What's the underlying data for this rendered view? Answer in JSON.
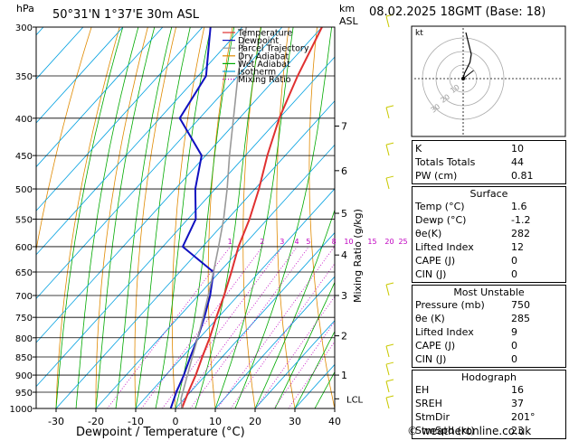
{
  "header": {
    "location": "50°31'N  1°37'E  30m  ASL",
    "date": "08.02.2025  18GMT  (Base: 18)",
    "pressure_unit": "hPa",
    "height_unit_km": "km",
    "height_unit_asl": "ASL"
  },
  "footer": "© weatheronline.co.uk",
  "chart_data": {
    "type": "line",
    "xlabel": "Dewpoint / Temperature (°C)",
    "ylabel_right": "Mixing Ratio (g/kg)",
    "x_ticks": [
      "-30",
      "-20",
      "-10",
      "0",
      "10",
      "20",
      "30",
      "40"
    ],
    "x_tick_values": [
      -30,
      -20,
      -10,
      0,
      10,
      20,
      30,
      40
    ],
    "pressure_levels": [
      300,
      350,
      400,
      450,
      500,
      550,
      600,
      650,
      700,
      750,
      800,
      850,
      900,
      950,
      1000
    ],
    "pressure_labels": [
      "300",
      "350",
      "400",
      "450",
      "500",
      "550",
      "600",
      "650",
      "700",
      "750",
      "800",
      "850",
      "900",
      "950",
      "1000"
    ],
    "km_ticks": [
      {
        "label": "1",
        "p": 900
      },
      {
        "label": "2",
        "p": 795
      },
      {
        "label": "3",
        "p": 700
      },
      {
        "label": "4",
        "p": 616
      },
      {
        "label": "5",
        "p": 540
      },
      {
        "label": "6",
        "p": 472
      },
      {
        "label": "7",
        "p": 410
      }
    ],
    "lcl": {
      "label": "LCL",
      "p": 970
    },
    "mixing_ratio_labels": [
      "1",
      "2",
      "3",
      "4",
      "5",
      "8",
      "10",
      "15",
      "20",
      "25"
    ],
    "mixing_ratio_values": [
      1,
      2,
      3,
      4,
      5,
      8,
      10,
      15,
      20,
      25
    ],
    "series": [
      {
        "name": "Temperature",
        "color": "#e03030",
        "p": [
          1000,
          950,
          900,
          850,
          800,
          750,
          700,
          650,
          600,
          550,
          500,
          450,
          400,
          350,
          300
        ],
        "t": [
          1.6,
          -0.5,
          -2.5,
          -5.0,
          -7.5,
          -10.5,
          -13.5,
          -17.0,
          -21.0,
          -24.5,
          -29.0,
          -34.5,
          -40.0,
          -45.0,
          -50.0
        ]
      },
      {
        "name": "Dewpoint",
        "color": "#1010c0",
        "p": [
          1000,
          950,
          900,
          850,
          800,
          750,
          700,
          650,
          600,
          550,
          500,
          450,
          400,
          350,
          300
        ],
        "t": [
          -1.2,
          -3.5,
          -5.5,
          -8.0,
          -10.5,
          -13.5,
          -17.0,
          -21.5,
          -35.0,
          -38.0,
          -45.0,
          -51.0,
          -65.0,
          -68.0,
          -78.0
        ]
      },
      {
        "name": "Parcel Trajectory",
        "color": "#999999",
        "p": [
          1000,
          970,
          900,
          850,
          800,
          750,
          700,
          650,
          600,
          550,
          500,
          450,
          400,
          350,
          300
        ],
        "t": [
          1.6,
          -0.8,
          -4.6,
          -7.5,
          -10.5,
          -13.8,
          -17.5,
          -21.5,
          -26.0,
          -31.0,
          -37.0,
          -44.0,
          -51.5,
          -60.0,
          -69.0
        ]
      }
    ],
    "legend": [
      "Temperature",
      "Dewpoint",
      "Parcel Trajectory",
      "Dry Adiabat",
      "Wet Adiabat",
      "Isotherm",
      "Mixing Ratio"
    ],
    "legend_colors": [
      "#e03030",
      "#1010c0",
      "#999999",
      "#e08a00",
      "#00aa00",
      "#00a0e0",
      "#c000c0"
    ],
    "legend_position": "top-right",
    "colors": {
      "dry_adiabat": "#e08a00",
      "wet_adiabat": "#00aa00",
      "isotherm": "#00a0e0",
      "mixing_ratio": "#c000c0"
    }
  },
  "hodograph": {
    "unit_label": "kt",
    "ring_labels": [
      "10",
      "20",
      "30"
    ],
    "points_u": [
      0,
      1,
      3,
      5,
      6,
      4,
      2
    ],
    "points_v": [
      0,
      4,
      8,
      12,
      18,
      26,
      34
    ],
    "storm_motion_u": 5,
    "storm_motion_v": 2
  },
  "indices": [
    {
      "label": "K",
      "value": "10"
    },
    {
      "label": "Totals Totals",
      "value": "44"
    },
    {
      "label": "PW (cm)",
      "value": "0.81"
    }
  ],
  "surface": {
    "title": "Surface",
    "rows": [
      {
        "label": "Temp (°C)",
        "value": "1.6"
      },
      {
        "label": "Dewp (°C)",
        "value": "-1.2"
      },
      {
        "label": "θe(K)",
        "value": "282"
      },
      {
        "label": "Lifted Index",
        "value": "12"
      },
      {
        "label": "CAPE (J)",
        "value": "0"
      },
      {
        "label": "CIN (J)",
        "value": "0"
      }
    ]
  },
  "most_unstable": {
    "title": "Most Unstable",
    "rows": [
      {
        "label": "Pressure (mb)",
        "value": "750"
      },
      {
        "label": "θe (K)",
        "value": "285"
      },
      {
        "label": "Lifted Index",
        "value": "9"
      },
      {
        "label": "CAPE (J)",
        "value": "0"
      },
      {
        "label": "CIN (J)",
        "value": "0"
      }
    ]
  },
  "hodograph_table": {
    "title": "Hodograph",
    "rows": [
      {
        "label": "EH",
        "value": "16"
      },
      {
        "label": "SREH",
        "value": "37"
      },
      {
        "label": "StmDir",
        "value": "201°"
      },
      {
        "label": "StmSpd (kt)",
        "value": "23"
      }
    ]
  }
}
